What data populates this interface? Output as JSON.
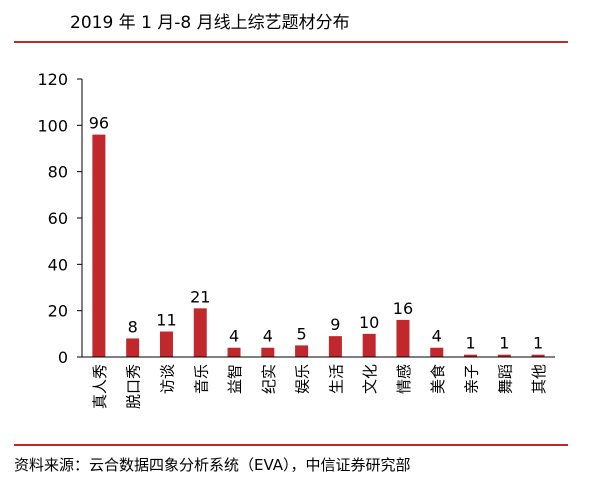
{
  "title": "2019 年 1 月-8 月线上综艺题材分布",
  "source": "资料来源：云合数据四象分析系统（EVA），中信证券研究部",
  "colors": {
    "bar": "#C0282D",
    "rule": "#C0282D",
    "axis": "#000000",
    "text": "#000000"
  },
  "chart_data": {
    "type": "bar",
    "title": "2019 年 1 月-8 月线上综艺题材分布",
    "categories": [
      "真人秀",
      "脱口秀",
      "访谈",
      "音乐",
      "益智",
      "纪实",
      "娱乐",
      "生活",
      "文化",
      "情感",
      "美食",
      "亲子",
      "舞蹈",
      "其他"
    ],
    "values": [
      96,
      8,
      11,
      21,
      4,
      4,
      5,
      9,
      10,
      16,
      4,
      1,
      1,
      1
    ],
    "data_labels": [
      "96",
      "8",
      "11",
      "21",
      "4",
      "4",
      "5",
      "9",
      "10",
      "16",
      "4",
      "1",
      "1",
      "1"
    ],
    "xlabel": "",
    "ylabel": "",
    "ylim": [
      0,
      120
    ],
    "yticks": [
      0,
      20,
      40,
      60,
      80,
      100,
      120
    ],
    "grid": false,
    "legend": "none"
  }
}
